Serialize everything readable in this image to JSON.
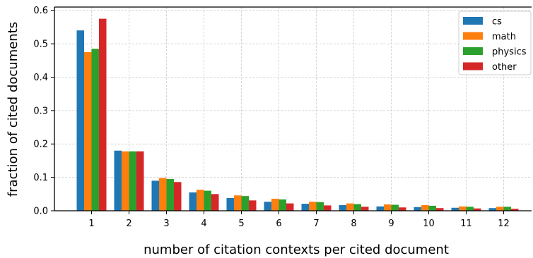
{
  "chart_data": {
    "type": "bar",
    "title": "",
    "xlabel": "number of citation contexts per cited document",
    "ylabel": "fraction of cited documents",
    "categories": [
      "1",
      "2",
      "3",
      "4",
      "5",
      "6",
      "7",
      "8",
      "9",
      "10",
      "11",
      "12"
    ],
    "ylim": [
      0,
      0.61
    ],
    "yticks": [
      "0.0",
      "0.1",
      "0.2",
      "0.3",
      "0.4",
      "0.5",
      "0.6"
    ],
    "grid": true,
    "legend_position": "top-right",
    "series": [
      {
        "name": "cs",
        "color": "#1f77b4",
        "values": [
          0.54,
          0.18,
          0.09,
          0.055,
          0.038,
          0.027,
          0.021,
          0.017,
          0.013,
          0.011,
          0.009,
          0.008
        ]
      },
      {
        "name": "math",
        "color": "#ff7f0e",
        "values": [
          0.475,
          0.178,
          0.098,
          0.063,
          0.046,
          0.036,
          0.027,
          0.022,
          0.019,
          0.017,
          0.013,
          0.012
        ]
      },
      {
        "name": "physics",
        "color": "#2ca02c",
        "values": [
          0.485,
          0.178,
          0.095,
          0.06,
          0.044,
          0.034,
          0.026,
          0.02,
          0.018,
          0.015,
          0.012,
          0.012
        ]
      },
      {
        "name": "other",
        "color": "#d62728",
        "values": [
          0.575,
          0.178,
          0.086,
          0.05,
          0.031,
          0.022,
          0.016,
          0.012,
          0.01,
          0.008,
          0.007,
          0.006
        ]
      }
    ]
  }
}
